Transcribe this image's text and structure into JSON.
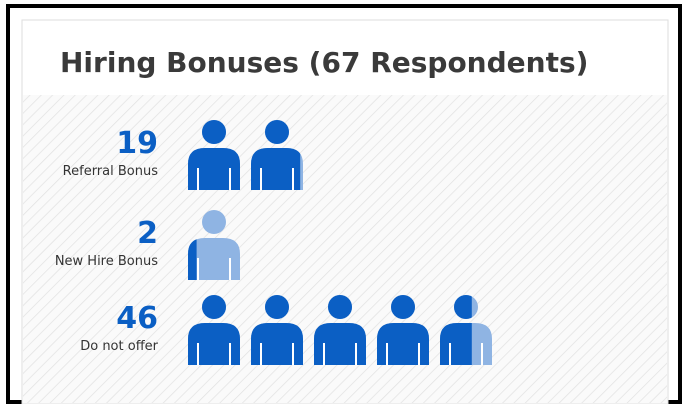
{
  "chart_data": {
    "type": "pictogram",
    "title": "Hiring Bonuses (67 Respondents)",
    "categories": [
      "Referral Bonus",
      "New Hire Bonus",
      "Do not offer"
    ],
    "values": [
      19,
      2,
      46
    ],
    "color": "#0b5fc4",
    "empty_color": "#8fb4e3"
  }
}
